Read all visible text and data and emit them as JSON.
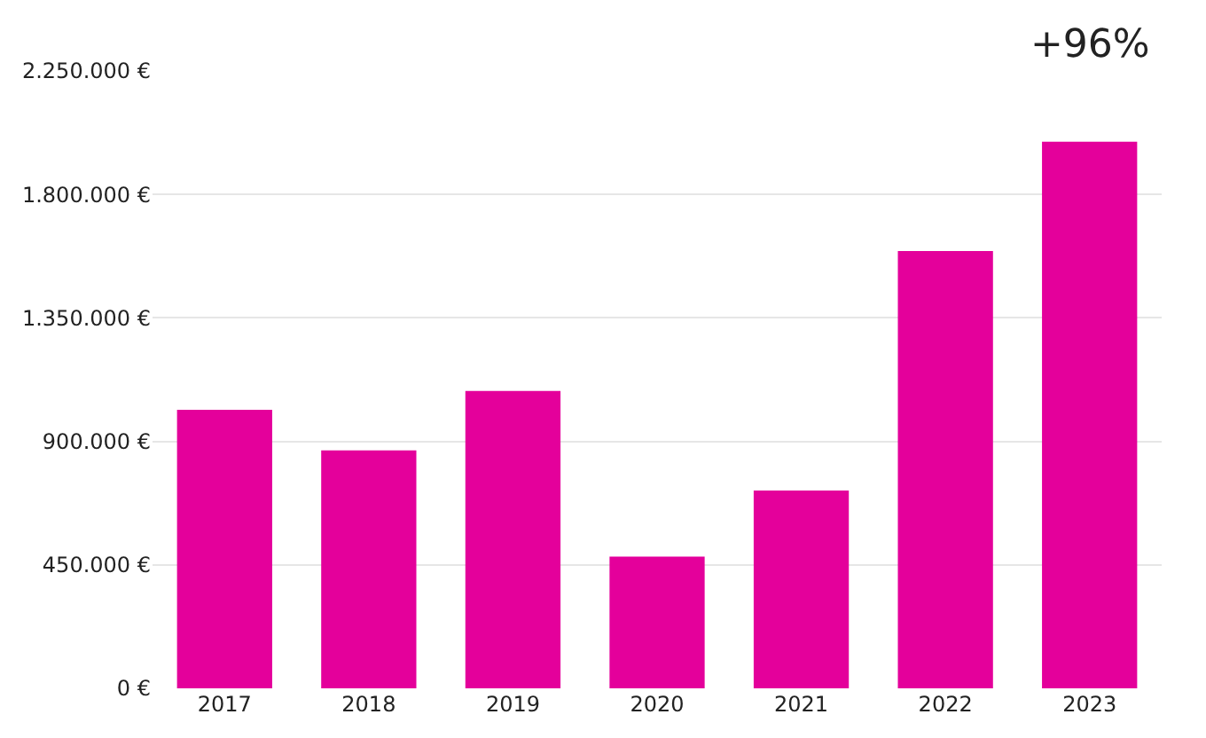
{
  "chart_data": {
    "type": "bar",
    "categories": [
      "2017",
      "2018",
      "2019",
      "2020",
      "2021",
      "2022",
      "2023"
    ],
    "values": [
      1015000,
      867000,
      1084000,
      480000,
      721000,
      1594000,
      1992000
    ],
    "color": "#e4009b",
    "ylim": [
      0,
      2250000
    ],
    "yticks": [
      {
        "value": 0,
        "label": "0 €"
      },
      {
        "value": 450000,
        "label": "450.000 €"
      },
      {
        "value": 900000,
        "label": "900.000 €"
      },
      {
        "value": 1350000,
        "label": "1.350.000 €"
      },
      {
        "value": 1800000,
        "label": "1.800.000 €"
      },
      {
        "value": 2250000,
        "label": "2.250.000 €"
      }
    ],
    "grid": "y",
    "annotations": [
      "+96%"
    ]
  }
}
